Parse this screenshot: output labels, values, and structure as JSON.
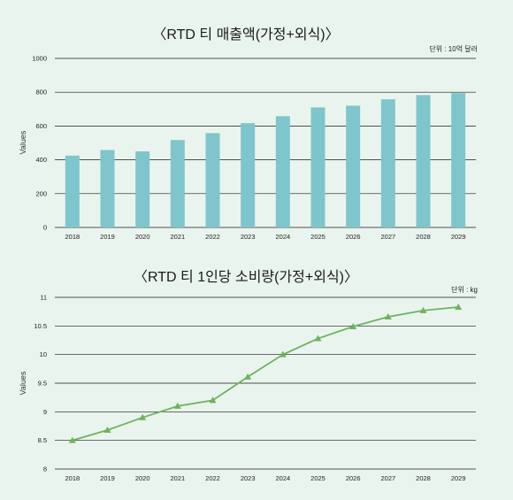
{
  "chart_data": [
    {
      "type": "bar",
      "title": "〈RTD 티 매출액(가정+외식)〉",
      "unit_note": "단위 : 10억 달러",
      "ylabel": "Values",
      "xlabel": "",
      "categories": [
        "2018",
        "2019",
        "2020",
        "2021",
        "2022",
        "2023",
        "2024",
        "2025",
        "2026",
        "2027",
        "2028",
        "2029"
      ],
      "values": [
        425,
        458,
        450,
        517,
        558,
        617,
        658,
        710,
        720,
        758,
        783,
        795
      ],
      "ylim": [
        0,
        1000
      ],
      "yticks": [
        0,
        200,
        400,
        600,
        800,
        1000
      ],
      "grid": true,
      "colors": {
        "bar": "#7ec6cb",
        "grid": "#1a1a1a"
      }
    },
    {
      "type": "line",
      "title": "〈RTD 티 1인당 소비량(가정+외식)〉",
      "unit_note": "단위 : kg",
      "ylabel": "Values",
      "xlabel": "",
      "categories": [
        "2018",
        "2019",
        "2020",
        "2021",
        "2022",
        "2023",
        "2024",
        "2025",
        "2026",
        "2027",
        "2028",
        "2029"
      ],
      "values": [
        8.5,
        8.68,
        8.9,
        9.1,
        9.2,
        9.61,
        10.0,
        10.28,
        10.49,
        10.66,
        10.77,
        10.83
      ],
      "ylim": [
        8,
        11
      ],
      "yticks": [
        "8",
        "8.5",
        "9",
        "9.5",
        "10",
        "10.5",
        "11"
      ],
      "grid": true,
      "marker": "triangle",
      "colors": {
        "line": "#6db35e",
        "grid": "#1a1a1a"
      }
    }
  ]
}
